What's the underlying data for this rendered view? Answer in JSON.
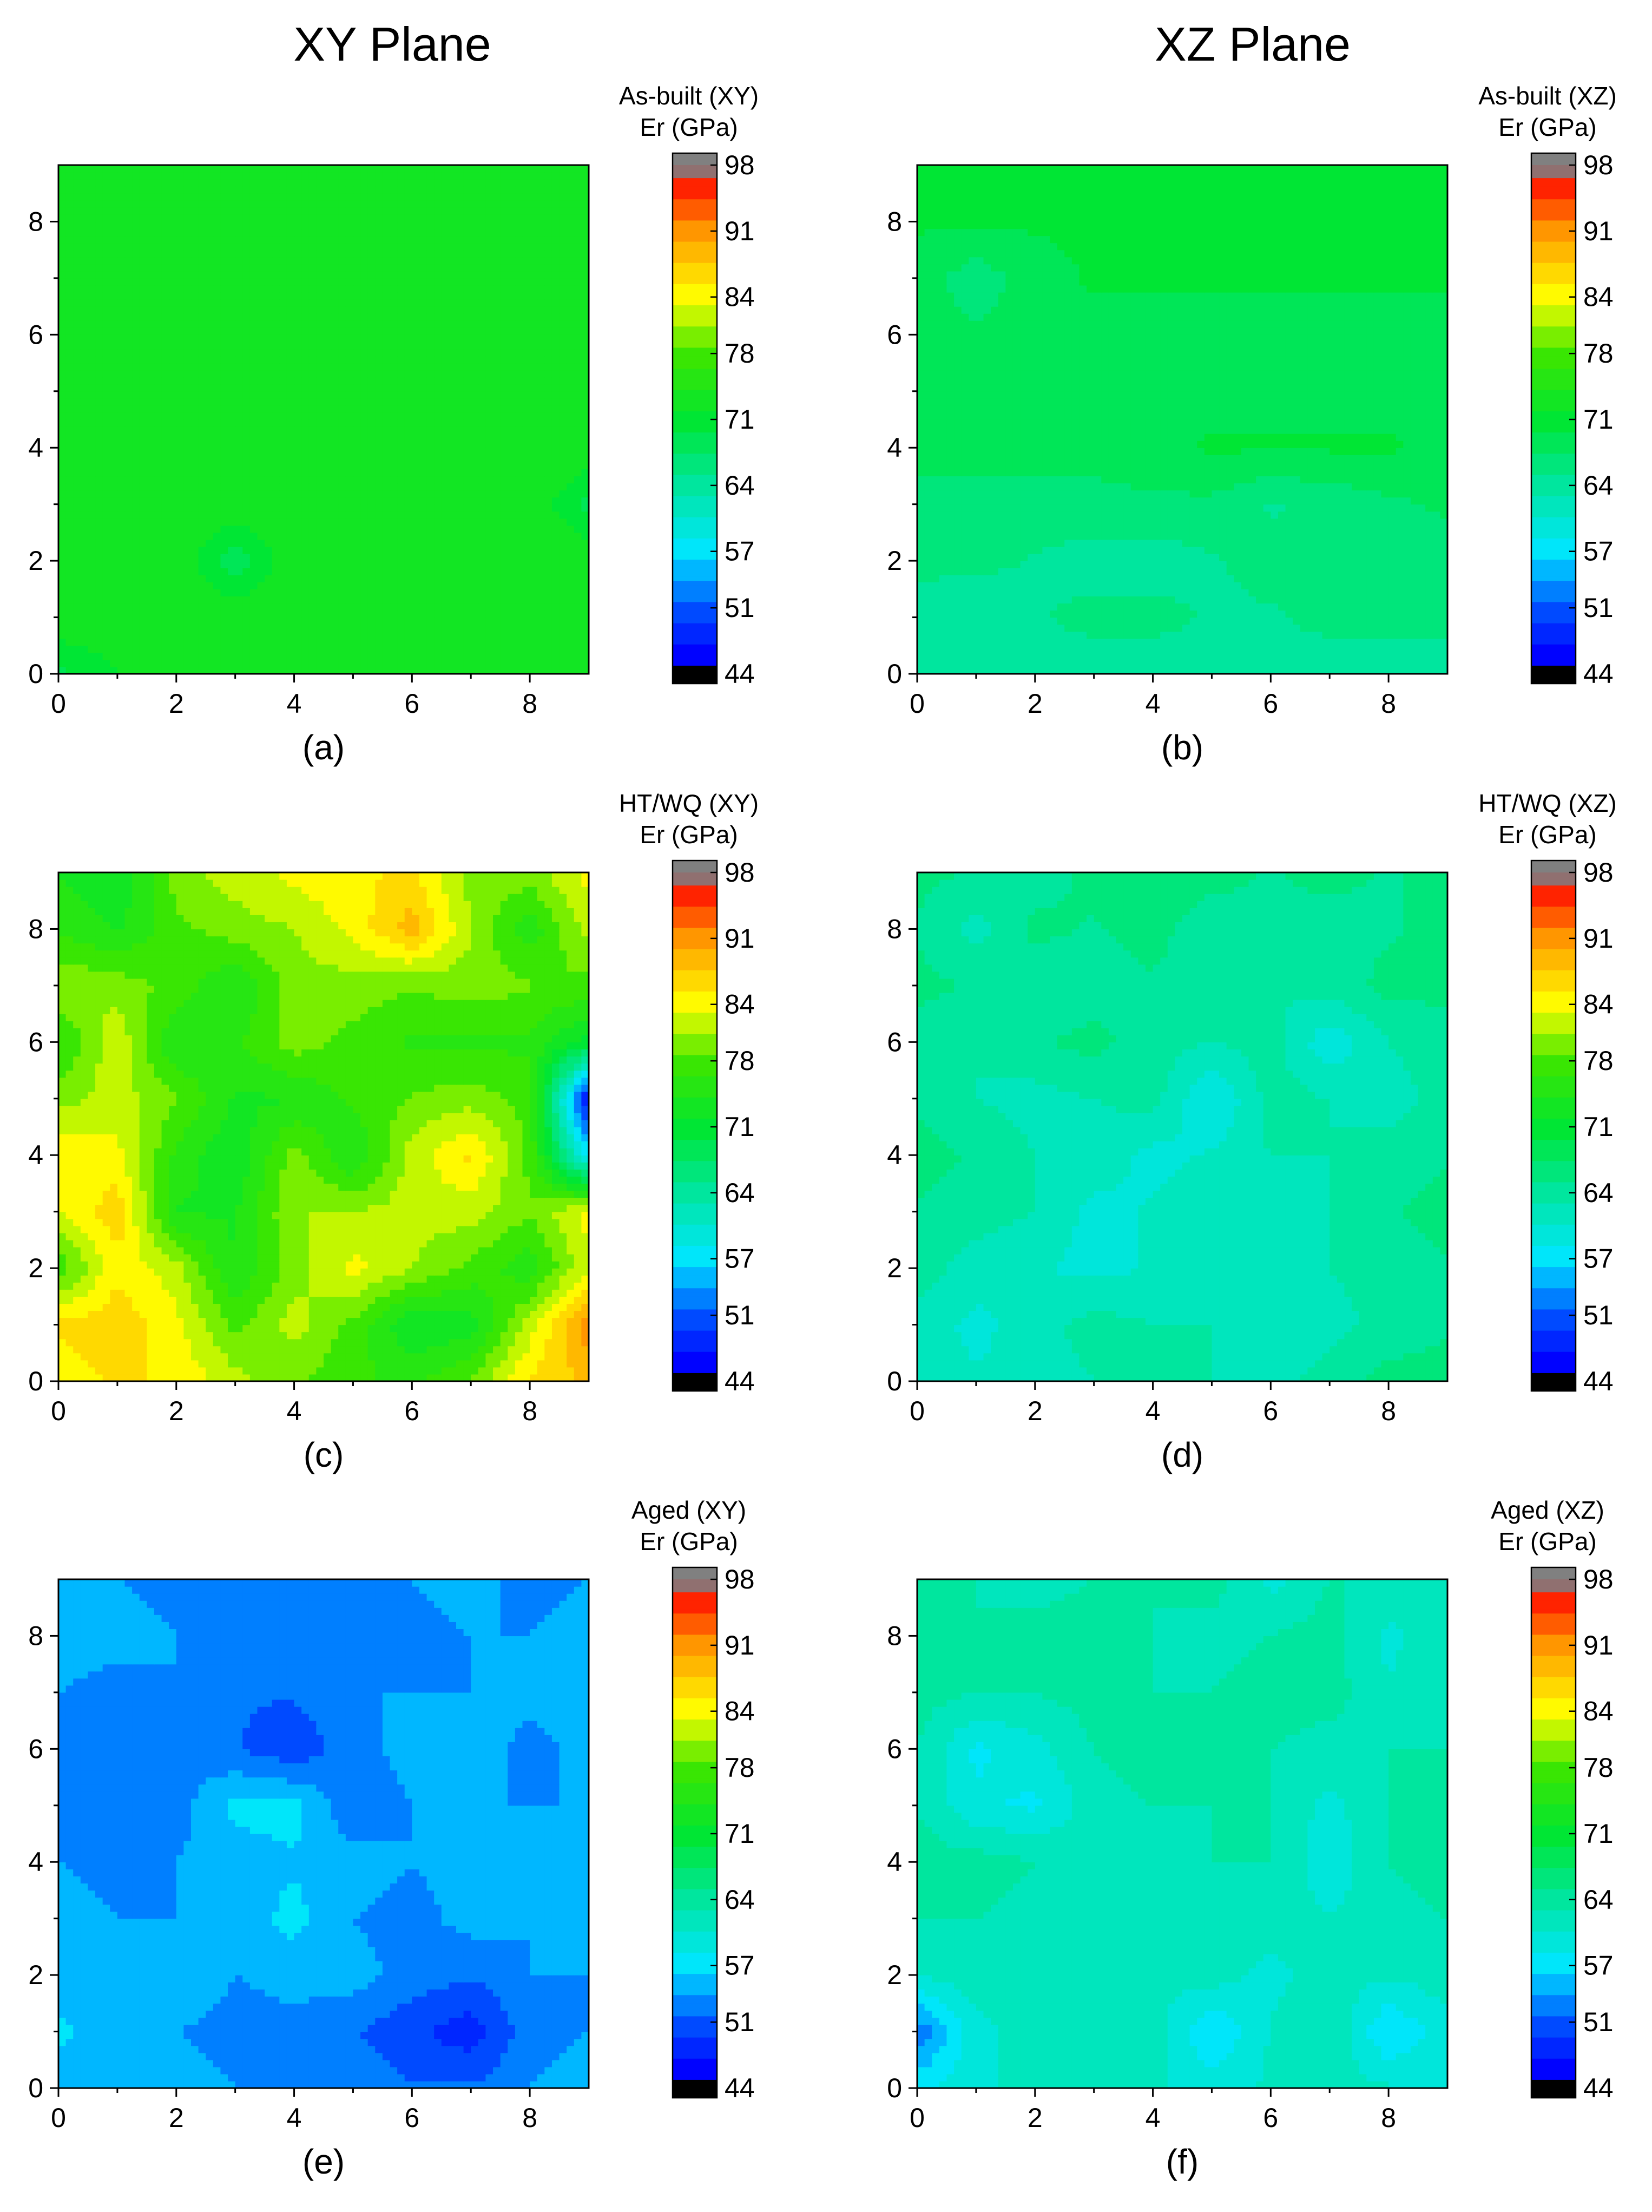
{
  "column_headers": [
    "XY Plane",
    "XZ Plane"
  ],
  "colorbar": {
    "ticks": [
      "98",
      "91",
      "84",
      "78",
      "71",
      "64",
      "57",
      "51",
      "44"
    ],
    "tick_values": [
      98,
      91,
      84,
      78,
      71,
      64,
      57,
      51,
      44
    ],
    "range": [
      44,
      98
    ],
    "colors": [
      "#000000",
      "#0000ff",
      "#00c8ff",
      "#00ffd0",
      "#00e632",
      "#00e600",
      "#c8ff00",
      "#ffff00",
      "#ff9900",
      "#ff0000",
      "#808080"
    ]
  },
  "chart_data": [
    {
      "type": "heatmap",
      "panel": "(a)",
      "caption": "(a)",
      "legend_title": [
        "As-built (XY)",
        "Er (GPa)"
      ],
      "x_ticks": [
        "0",
        "2",
        "4",
        "6",
        "8"
      ],
      "y_ticks": [
        "0",
        "2",
        "4",
        "6",
        "8"
      ],
      "xlim": [
        0,
        9
      ],
      "ylim": [
        0,
        9
      ],
      "zlim": [
        44,
        98
      ],
      "z_grid": [
        [
          69,
          72,
          74,
          74,
          74,
          74,
          74,
          74,
          74,
          73
        ],
        [
          74,
          74,
          74,
          74,
          74,
          74,
          74,
          74,
          74,
          74
        ],
        [
          74,
          74,
          74,
          68,
          74,
          74,
          74,
          74,
          74,
          74
        ],
        [
          74,
          74,
          74,
          74,
          74,
          74,
          74,
          74,
          74,
          69
        ],
        [
          74,
          74,
          74,
          74,
          74,
          74,
          74,
          74,
          74,
          74
        ],
        [
          74,
          74,
          74,
          74,
          74,
          74,
          74,
          74,
          74,
          74
        ],
        [
          74,
          74,
          74,
          74,
          74,
          74,
          74,
          74,
          74,
          74
        ],
        [
          74,
          74,
          74,
          74,
          74,
          74,
          74,
          74,
          74,
          74
        ],
        [
          74,
          74,
          74,
          74,
          74,
          74,
          74,
          74,
          74,
          74
        ],
        [
          74,
          74,
          74,
          74,
          74,
          74,
          74,
          74,
          74,
          73
        ]
      ]
    },
    {
      "type": "heatmap",
      "panel": "(b)",
      "caption": "(b)",
      "legend_title": [
        "As-built (XZ)",
        "Er (GPa)"
      ],
      "x_ticks": [
        "0",
        "2",
        "4",
        "6",
        "8"
      ],
      "y_ticks": [
        "0",
        "2",
        "4",
        "6",
        "8"
      ],
      "xlim": [
        0,
        9
      ],
      "ylim": [
        0,
        9
      ],
      "zlim": [
        44,
        98
      ],
      "z_grid": [
        [
          64,
          64,
          64,
          64,
          64,
          64,
          64,
          64,
          64,
          64
        ],
        [
          64,
          63,
          65,
          66,
          66,
          65,
          65,
          66,
          66,
          66
        ],
        [
          66,
          66,
          65,
          64,
          64,
          65,
          66,
          66,
          66,
          66
        ],
        [
          67,
          67,
          67,
          67,
          67,
          67,
          65,
          66,
          67,
          68
        ],
        [
          68,
          68,
          68,
          68,
          69,
          70,
          70,
          70,
          70,
          69
        ],
        [
          68,
          68,
          68,
          69,
          69,
          69,
          69,
          69,
          69,
          69
        ],
        [
          68,
          68,
          68,
          69,
          69,
          69,
          69,
          69,
          69,
          69
        ],
        [
          69,
          66,
          69,
          70,
          70,
          70,
          70,
          70,
          70,
          70
        ],
        [
          70,
          70,
          70,
          70,
          70,
          70,
          70,
          70,
          70,
          70
        ],
        [
          70,
          70,
          70,
          70,
          70,
          70,
          70,
          70,
          70,
          70
        ]
      ]
    },
    {
      "type": "heatmap",
      "panel": "(c)",
      "caption": "(c)",
      "legend_title": [
        "HT/WQ (XY)",
        "Er (GPa)"
      ],
      "x_ticks": [
        "0",
        "2",
        "4",
        "6",
        "8"
      ],
      "y_ticks": [
        "0",
        "2",
        "4",
        "6",
        "8"
      ],
      "xlim": [
        0,
        9
      ],
      "ylim": [
        0,
        9
      ],
      "zlim": [
        44,
        98
      ],
      "z_grid": [
        [
          84,
          86,
          85,
          82,
          79,
          77,
          76,
          79,
          86,
          88
        ],
        [
          86,
          87,
          84,
          78,
          82,
          78,
          72,
          73,
          82,
          92
        ],
        [
          77,
          85,
          82,
          74,
          80,
          84,
          81,
          78,
          75,
          83
        ],
        [
          83,
          87,
          74,
          74,
          81,
          81,
          82,
          82,
          79,
          84
        ],
        [
          85,
          84,
          76,
          72,
          80,
          74,
          82,
          86,
          78,
          57
        ],
        [
          80,
          82,
          79,
          74,
          74,
          77,
          79,
          80,
          78,
          46
        ],
        [
          76,
          83,
          74,
          76,
          80,
          78,
          76,
          76,
          76,
          71
        ],
        [
          81,
          80,
          78,
          74,
          80,
          80,
          79,
          80,
          79,
          78
        ],
        [
          76,
          74,
          78,
          80,
          81,
          84,
          89,
          81,
          75,
          82
        ],
        [
          74,
          72,
          80,
          82,
          84,
          85,
          86,
          80,
          80,
          84
        ]
      ]
    },
    {
      "type": "heatmap",
      "panel": "(d)",
      "caption": "(d)",
      "legend_title": [
        "HT/WQ (XZ)",
        "Er (GPa)"
      ],
      "x_ticks": [
        "0",
        "2",
        "4",
        "6",
        "8"
      ],
      "y_ticks": [
        "0",
        "2",
        "4",
        "6",
        "8"
      ],
      "xlim": [
        0,
        9
      ],
      "ylim": [
        0,
        9
      ],
      "zlim": [
        44,
        98
      ],
      "z_grid": [
        [
          63,
          61,
          62,
          63,
          64,
          63,
          62,
          64,
          66,
          66
        ],
        [
          62,
          60,
          62,
          64,
          63,
          63,
          61,
          62,
          64,
          65
        ],
        [
          64,
          62,
          61,
          60,
          61,
          62,
          62,
          63,
          64,
          65
        ],
        [
          65,
          64,
          63,
          60,
          61,
          62,
          61,
          63,
          65,
          66
        ],
        [
          66,
          65,
          63,
          62,
          60,
          61,
          63,
          63,
          64,
          65
        ],
        [
          65,
          63,
          62,
          63,
          64,
          58,
          64,
          63,
          62,
          64
        ],
        [
          64,
          63,
          65,
          66,
          64,
          63,
          64,
          59,
          63,
          64
        ],
        [
          66,
          65,
          63,
          64,
          65,
          64,
          63,
          64,
          66,
          66
        ],
        [
          65,
          62,
          66,
          65,
          66,
          64,
          65,
          64,
          65,
          66
        ],
        [
          66,
          65,
          64,
          66,
          67,
          66,
          65,
          66,
          65,
          66
        ]
      ]
    },
    {
      "type": "heatmap",
      "panel": "(e)",
      "caption": "(e)",
      "legend_title": [
        "Aged (XY)",
        "Er (GPa)"
      ],
      "x_ticks": [
        "0",
        "2",
        "4",
        "6",
        "8"
      ],
      "y_ticks": [
        "0",
        "2",
        "4",
        "6",
        "8"
      ],
      "xlim": [
        0,
        9
      ],
      "ylim": [
        0,
        9
      ],
      "zlim": [
        44,
        98
      ],
      "z_grid": [
        [
          55,
          55,
          55,
          54,
          54,
          53,
          52,
          52,
          54,
          55
        ],
        [
          57,
          54,
          54,
          53,
          53,
          52,
          50,
          48,
          53,
          54
        ],
        [
          54,
          55,
          56,
          54,
          55,
          55,
          53,
          52,
          54,
          54
        ],
        [
          55,
          54,
          54,
          55,
          57,
          54,
          53,
          55,
          54,
          54
        ],
        [
          54,
          53,
          54,
          55,
          56,
          55,
          54,
          55,
          56,
          54
        ],
        [
          53,
          52,
          53,
          57,
          57,
          52,
          54,
          54,
          54,
          54
        ],
        [
          54,
          54,
          53,
          52,
          50,
          53,
          55,
          56,
          53,
          55
        ],
        [
          54,
          53,
          54,
          52,
          52,
          54,
          54,
          54,
          55,
          56
        ],
        [
          55,
          55,
          54,
          54,
          53,
          54,
          53,
          54,
          54,
          55
        ],
        [
          54,
          54,
          53,
          53,
          54,
          54,
          54,
          55,
          53,
          54
        ]
      ]
    },
    {
      "type": "heatmap",
      "panel": "(f)",
      "caption": "(f)",
      "legend_title": [
        "Aged (XZ)",
        "Er (GPa)"
      ],
      "x_ticks": [
        "0",
        "2",
        "4",
        "6",
        "8"
      ],
      "y_ticks": [
        "0",
        "2",
        "4",
        "6",
        "8"
      ],
      "xlim": [
        0,
        9
      ],
      "ylim": [
        0,
        9
      ],
      "zlim": [
        44,
        98
      ],
      "z_grid": [
        [
          58,
          60,
          62,
          62,
          61,
          60,
          61,
          62,
          61,
          60
        ],
        [
          52,
          60,
          62,
          62,
          62,
          56,
          61,
          63,
          56,
          60
        ],
        [
          61,
          62,
          63,
          63,
          61,
          62,
          60,
          62,
          61,
          62
        ],
        [
          63,
          63,
          62,
          61,
          62,
          61,
          62,
          61,
          62,
          63
        ],
        [
          64,
          64,
          63,
          62,
          62,
          63,
          63,
          59,
          63,
          64
        ],
        [
          63,
          59,
          58,
          62,
          63,
          63,
          63,
          60,
          63,
          64
        ],
        [
          63,
          58,
          60,
          63,
          64,
          64,
          63,
          62,
          63,
          63
        ],
        [
          64,
          63,
          63,
          64,
          63,
          63,
          64,
          64,
          61,
          63
        ],
        [
          63,
          63,
          64,
          64,
          63,
          62,
          63,
          64,
          60,
          63
        ],
        [
          63,
          63,
          62,
          63,
          63,
          64,
          60,
          63,
          63,
          63
        ]
      ]
    }
  ]
}
